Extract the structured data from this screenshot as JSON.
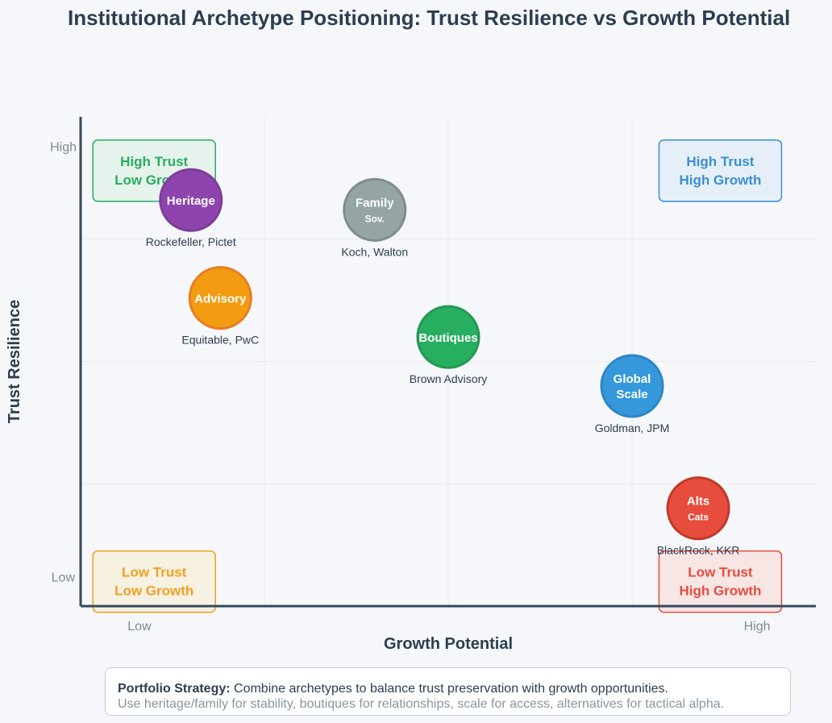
{
  "chart_data": {
    "type": "scatter",
    "title": "Institutional Archetype Positioning: Trust Resilience vs Growth Potential",
    "xlabel": "Growth Potential",
    "ylabel": "Trust Resilience",
    "x_tick_labels": [
      "Low",
      "High"
    ],
    "y_tick_labels": [
      "High",
      "Low"
    ],
    "xlim": [
      0,
      10
    ],
    "ylim": [
      0,
      10
    ],
    "grid": true,
    "quadrants": [
      {
        "label": [
          "High Trust",
          "Low Growth"
        ],
        "x": 1.0,
        "y": 8.9,
        "color": "#27ae60",
        "fill": "#e6f2ec"
      },
      {
        "label": [
          "High Trust",
          "High Growth"
        ],
        "x": 8.7,
        "y": 8.9,
        "color": "#3a8fd0",
        "fill": "#e6eff8"
      },
      {
        "label": [
          "Low Trust",
          "Low Growth"
        ],
        "x": 1.0,
        "y": 0.5,
        "color": "#f0a020",
        "fill": "#f7f1e2"
      },
      {
        "label": [
          "Low Trust",
          "High Growth"
        ],
        "x": 8.7,
        "y": 0.5,
        "color": "#e74c3c",
        "fill": "#f8e6e5"
      }
    ],
    "points": [
      {
        "name": [
          "Heritage"
        ],
        "x": 1.5,
        "y": 8.3,
        "examples": "Rockefeller, Pictet",
        "color": "#8e44ad",
        "border": "#7d3c98"
      },
      {
        "name": [
          "Family",
          "Sov."
        ],
        "x": 4.0,
        "y": 8.1,
        "examples": "Koch, Walton",
        "color": "#95a5a6",
        "border": "#7f8c8d"
      },
      {
        "name": [
          "Advisory"
        ],
        "x": 1.9,
        "y": 6.3,
        "examples": "Equitable, PwC",
        "color": "#f39c12",
        "border": "#e67e22"
      },
      {
        "name": [
          "Boutiques"
        ],
        "x": 5.0,
        "y": 5.5,
        "examples": "Brown Advisory",
        "color": "#27ae60",
        "border": "#229954"
      },
      {
        "name": [
          "Global",
          "Scale"
        ],
        "x": 7.5,
        "y": 4.5,
        "examples": "Goldman, JPM",
        "color": "#3498db",
        "border": "#2e86c1"
      },
      {
        "name": [
          "Alts",
          "Cats"
        ],
        "x": 8.4,
        "y": 2.0,
        "examples": "BlackRock, KKR",
        "color": "#e74c3c",
        "border": "#c0392b"
      }
    ]
  },
  "footer": {
    "heading": "Portfolio Strategy:",
    "line1": "Combine archetypes to balance trust preservation with growth opportunities.",
    "line2": "Use heritage/family for stability, boutiques for relationships, scale for access, alternatives for tactical alpha."
  }
}
